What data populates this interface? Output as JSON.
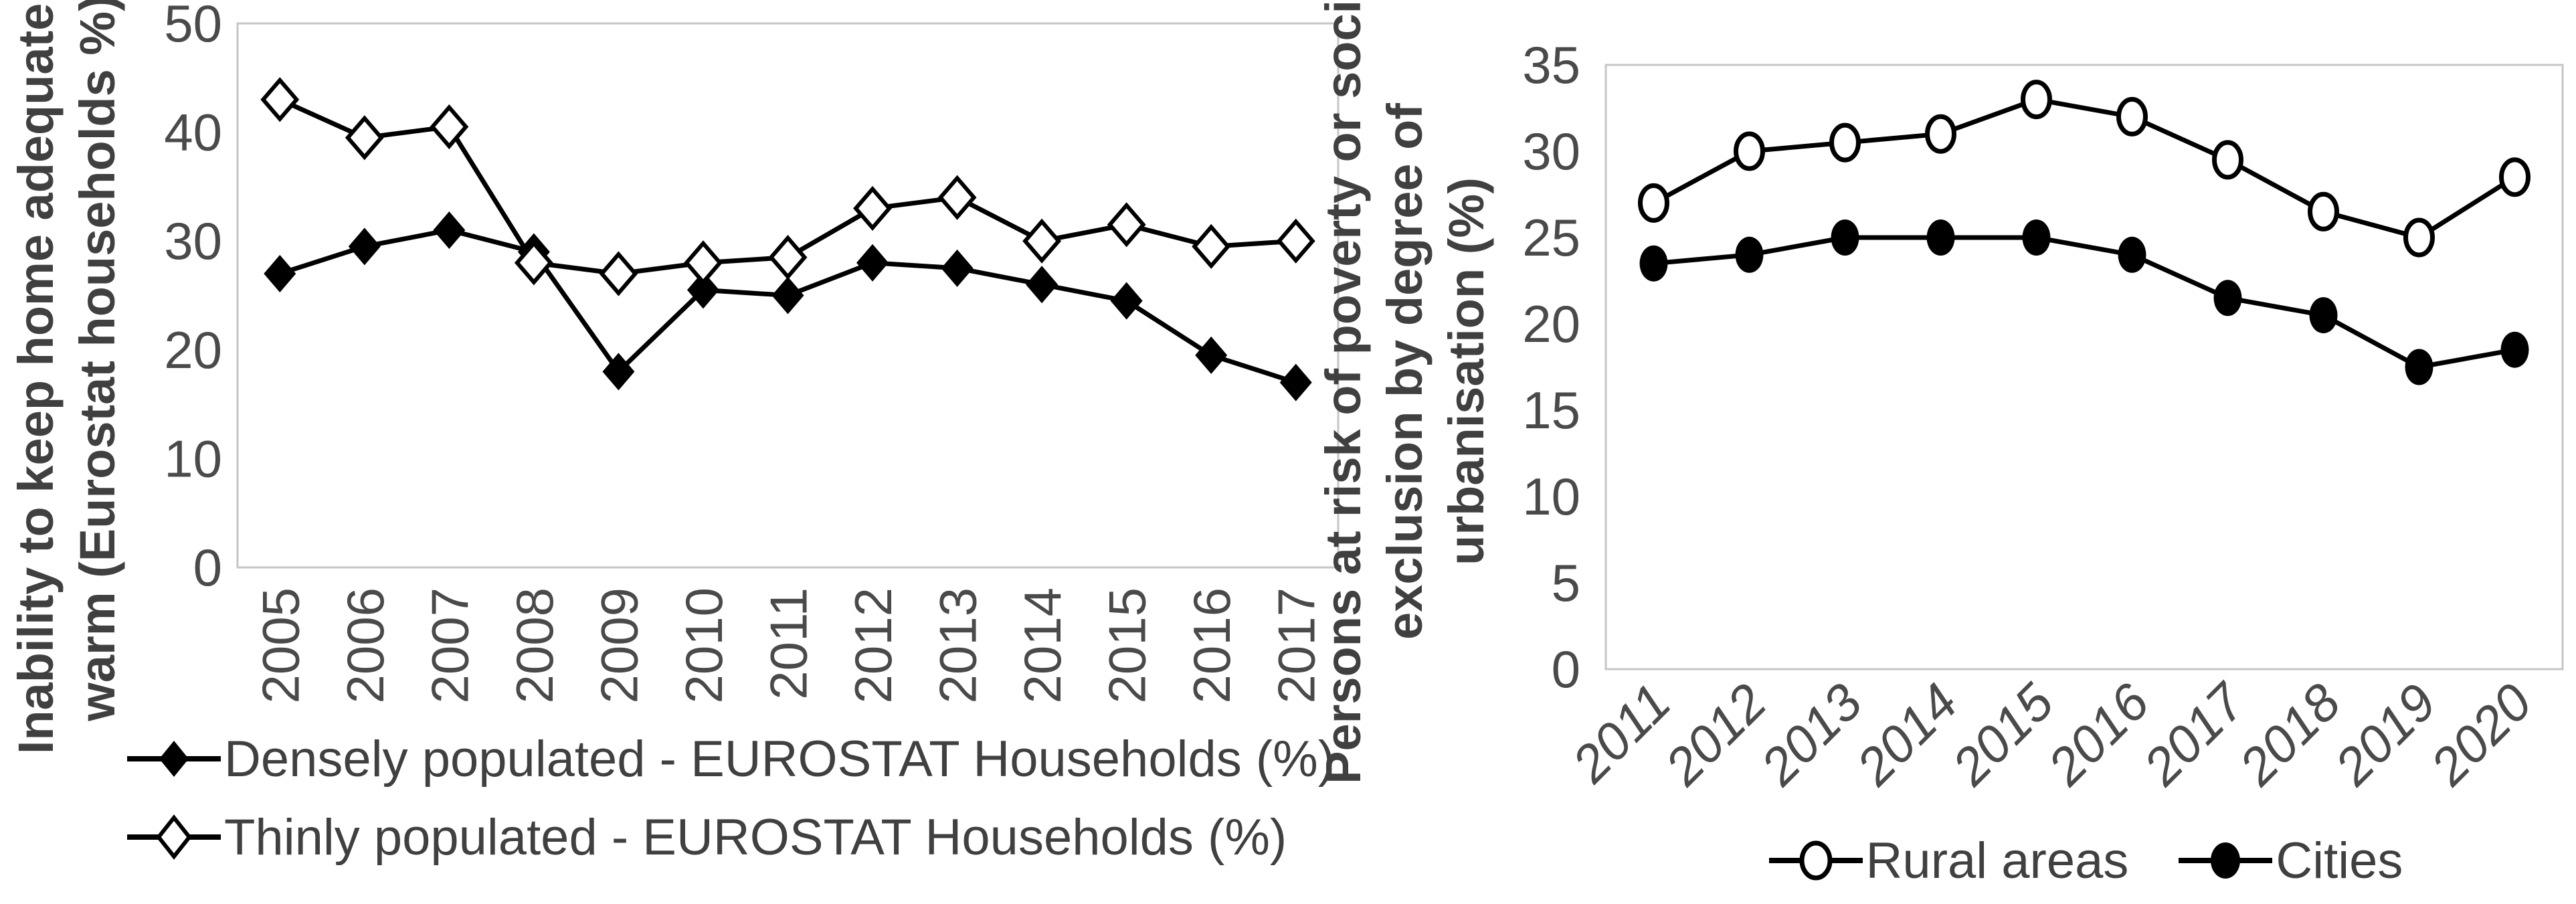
{
  "figure": {
    "background": "#ffffff",
    "colors": {
      "series": "#000000",
      "text": "#404040",
      "plot_border": "#c6c6c6"
    }
  },
  "chart_data": [
    {
      "type": "line",
      "title": "",
      "ylabel_lines": [
        "Inability to keep home adequately",
        "warm (Eurostat households %)"
      ],
      "ylabel": "Inability to keep home adequately warm (Eurostat households %)",
      "xlabel": "",
      "categories": [
        "2005",
        "2006",
        "2007",
        "2008",
        "2009",
        "2010",
        "2011",
        "2012",
        "2013",
        "2014",
        "2015",
        "2016",
        "2017"
      ],
      "yticks": [
        0,
        10,
        20,
        30,
        40,
        50
      ],
      "ylim": [
        0,
        50
      ],
      "grid": false,
      "legend_position": "bottom-left",
      "series": [
        {
          "name": "Densely populated - EUROSTAT Households (%)",
          "marker": "diamond-filled",
          "values": [
            27,
            29.5,
            31,
            29,
            18,
            25.5,
            25,
            28,
            27.5,
            26,
            24.5,
            19.5,
            17
          ]
        },
        {
          "name": "Thinly populated - EUROSTAT Households (%)",
          "marker": "diamond-open",
          "values": [
            43,
            39.5,
            40.5,
            28,
            27,
            28,
            28.5,
            33,
            34,
            30,
            31.5,
            29.5,
            30
          ]
        }
      ]
    },
    {
      "type": "line",
      "title": "",
      "ylabel_lines": [
        "Persons at risk of poverty or social",
        "exclusion by degree of",
        "urbanisation (%)"
      ],
      "ylabel": "Persons at risk of poverty or social exclusion by degree of urbanisation (%)",
      "xlabel": "",
      "categories": [
        "2011",
        "2012",
        "2013",
        "2014",
        "2015",
        "2016",
        "2017",
        "2018",
        "2019",
        "2020"
      ],
      "yticks": [
        0,
        5,
        10,
        15,
        20,
        25,
        30,
        35
      ],
      "ylim": [
        0,
        35
      ],
      "grid": false,
      "legend_position": "bottom-center",
      "series": [
        {
          "name": "Rural areas",
          "marker": "circle-open",
          "values": [
            27,
            30,
            30.5,
            31,
            33,
            32,
            29.5,
            26.5,
            25,
            28.5
          ]
        },
        {
          "name": "Cities",
          "marker": "circle-filled",
          "values": [
            23.5,
            24,
            25,
            25,
            25,
            24,
            21.5,
            20.5,
            17.5,
            18.5
          ]
        }
      ]
    }
  ]
}
